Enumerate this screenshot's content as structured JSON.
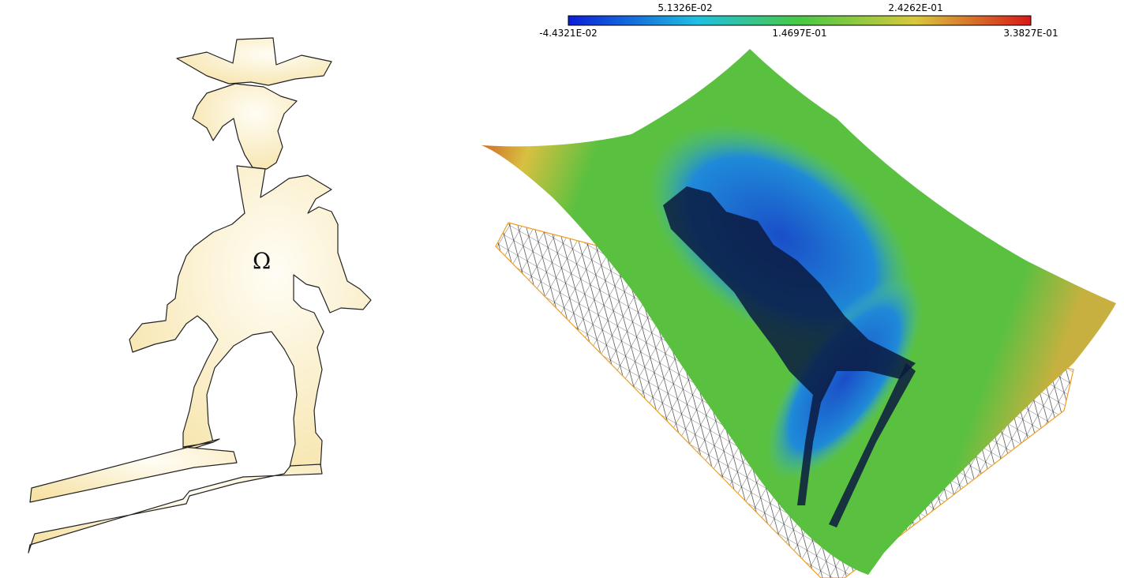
{
  "domain_label": "Ω",
  "colorbar": {
    "labels_top": [
      "5.1326E-02",
      "2.4262E-01"
    ],
    "labels_bottom": [
      "-4.4321E-02",
      "1.4697E-01",
      "3.3827E-01"
    ],
    "colors": [
      "#0a1ed8",
      "#1f9ae8",
      "#48c844",
      "#d8c83c",
      "#d81818"
    ]
  },
  "colors": {
    "domain_fill_light": "#fffdf3",
    "domain_fill_dark": "#f7e4a8",
    "mesh_line": "#111111",
    "mesh_border": "#f0a020",
    "surface_green": "#5ac040",
    "surface_blue": "#1a55c8",
    "surface_red": "#c83018"
  }
}
